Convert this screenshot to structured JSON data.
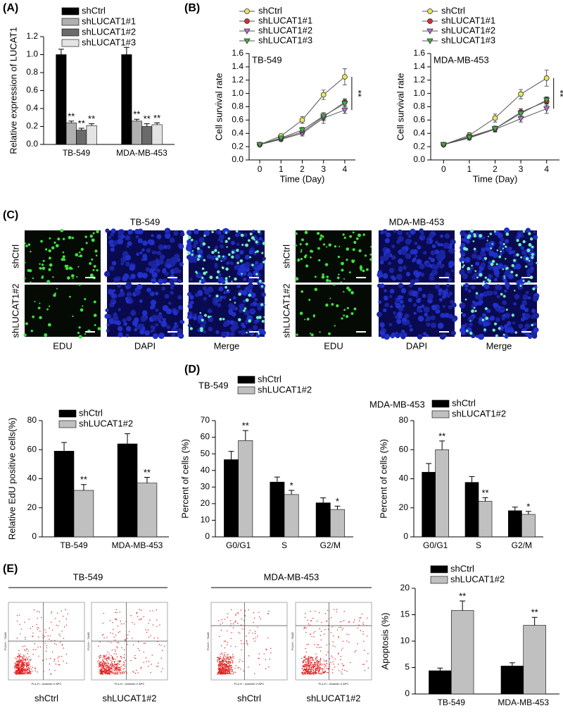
{
  "panels": [
    "(A)",
    "(B)",
    "(C)",
    "(D)",
    "(E)"
  ],
  "microscopy": {
    "groups": [
      "TB-549",
      "MDA-MB-453"
    ],
    "rows": [
      "shCtrl",
      "shLUCAT1#2"
    ],
    "columns": [
      "EDU",
      "DAPI",
      "Merge"
    ]
  },
  "flow": {
    "groups": [
      "TB-549",
      "MDA-MB-453"
    ],
    "samples": [
      "shCtrl",
      "shLUCAT1#2"
    ],
    "x_axis": "FL4-H :: Annexin V APC",
    "y_axis": "FL3-H :: 7AAD"
  },
  "chart_data": [
    {
      "type": "bar",
      "ylabel": "Relative expression of LUCAT1",
      "categories": [
        "TB-549",
        "MDA-MB-453"
      ],
      "ylim": [
        0,
        1.2
      ],
      "yticks": [
        {
          "value": 0,
          "label": "0.0"
        },
        0.2,
        0.4,
        0.6,
        0.8,
        {
          "value": 1,
          "label": "1.0"
        },
        1.2
      ],
      "series": [
        {
          "name": "shCtrl",
          "color": "#000000",
          "values": [
            1.0,
            1.0
          ],
          "errors": [
            0.06,
            0.08
          ]
        },
        {
          "name": "shLUCAT1#1",
          "color": "#b0b0b0",
          "values": [
            0.24,
            0.26
          ],
          "errors": [
            0.02,
            0.02
          ],
          "sig": [
            "**",
            "**"
          ]
        },
        {
          "name": "shLUCAT1#2",
          "color": "#6a6a6a",
          "values": [
            0.16,
            0.2
          ],
          "errors": [
            0.02,
            0.03
          ],
          "sig": [
            "**",
            "**"
          ]
        },
        {
          "name": "shLUCAT1#3",
          "color": "#e4e4e4",
          "values": [
            0.21,
            0.22
          ],
          "errors": [
            0.02,
            0.02
          ],
          "sig": [
            "**",
            "**"
          ]
        }
      ]
    },
    {
      "type": "line",
      "title": "TB-549",
      "xlabel": "Time (Day)",
      "ylabel": "Cell survival rate",
      "annotation": "**",
      "x": [
        0,
        1,
        2,
        3,
        4
      ],
      "xlim": [
        -0.5,
        4.5
      ],
      "xticks": [
        0,
        1,
        2,
        3,
        4
      ],
      "ylim": [
        0,
        1.6
      ],
      "yticks": [
        {
          "value": 0,
          "label": "0.0"
        },
        0.2,
        0.4,
        0.6,
        0.8,
        {
          "value": 1,
          "label": "1.0"
        },
        1.2,
        1.4,
        1.6
      ],
      "series": [
        {
          "name": "shCtrl",
          "color": "#e6e65a",
          "marker": "circle",
          "values": [
            0.23,
            0.36,
            0.6,
            0.98,
            1.25
          ],
          "errors": [
            0.02,
            0.03,
            0.05,
            0.07,
            0.12
          ]
        },
        {
          "name": "shLUCAT1#1",
          "color": "#d03030",
          "marker": "circle",
          "values": [
            0.23,
            0.32,
            0.42,
            0.65,
            0.87
          ],
          "errors": [
            0.02,
            0.03,
            0.04,
            0.06,
            0.05
          ]
        },
        {
          "name": "shLUCAT1#2",
          "color": "#b070d0",
          "marker": "triangle-down",
          "values": [
            0.23,
            0.31,
            0.4,
            0.63,
            0.75
          ],
          "errors": [
            0.02,
            0.03,
            0.04,
            0.08,
            0.05
          ]
        },
        {
          "name": "shLUCAT1#3",
          "color": "#40b040",
          "marker": "triangle-down",
          "values": [
            0.23,
            0.33,
            0.45,
            0.66,
            0.85
          ],
          "errors": [
            0.02,
            0.03,
            0.04,
            0.05,
            0.05
          ]
        }
      ]
    },
    {
      "type": "line",
      "title": "MDA-MB-453",
      "xlabel": "Time (Day)",
      "ylabel": "Cell survival rate",
      "annotation": "**",
      "x": [
        0,
        1,
        2,
        3,
        4
      ],
      "xlim": [
        -0.5,
        4.5
      ],
      "xticks": [
        0,
        1,
        2,
        3,
        4
      ],
      "ylim": [
        0,
        1.6
      ],
      "yticks": [
        {
          "value": 0,
          "label": "0.0"
        },
        0.2,
        0.4,
        0.6,
        0.8,
        {
          "value": 1,
          "label": "1.0"
        },
        1.2,
        1.4,
        1.6
      ],
      "series": [
        {
          "name": "shCtrl",
          "color": "#e6e65a",
          "marker": "circle",
          "values": [
            0.23,
            0.37,
            0.63,
            0.99,
            1.23
          ],
          "errors": [
            0.02,
            0.04,
            0.06,
            0.07,
            0.12
          ]
        },
        {
          "name": "shLUCAT1#1",
          "color": "#d03030",
          "marker": "circle",
          "values": [
            0.23,
            0.35,
            0.47,
            0.72,
            0.88
          ],
          "errors": [
            0.02,
            0.03,
            0.04,
            0.05,
            0.06
          ]
        },
        {
          "name": "shLUCAT1#2",
          "color": "#b070d0",
          "marker": "triangle-down",
          "values": [
            0.23,
            0.33,
            0.46,
            0.62,
            0.77
          ],
          "errors": [
            0.02,
            0.03,
            0.04,
            0.05,
            0.07
          ]
        },
        {
          "name": "shLUCAT1#3",
          "color": "#40b040",
          "marker": "triangle-down",
          "values": [
            0.23,
            0.34,
            0.47,
            0.7,
            0.9
          ],
          "errors": [
            0.02,
            0.03,
            0.04,
            0.05,
            0.05
          ]
        }
      ]
    },
    {
      "type": "bar",
      "ylabel": "Relative EdU positive cells(%)",
      "categories": [
        "TB-549",
        "MDA-MB-453"
      ],
      "ylim": [
        0,
        80
      ],
      "yticks": [
        0,
        20,
        40,
        60,
        80
      ],
      "series": [
        {
          "name": "shCtrl",
          "color": "#000000",
          "values": [
            59,
            64
          ],
          "errors": [
            6,
            7
          ]
        },
        {
          "name": "shLUCAT1#2",
          "color": "#c0c0c0",
          "values": [
            32,
            37
          ],
          "errors": [
            4,
            4
          ],
          "sig": [
            "**",
            "**"
          ]
        }
      ]
    },
    {
      "type": "bar",
      "title": "TB-549",
      "ylabel": "Percent of cells (%)",
      "categories": [
        "G0/G1",
        "S",
        "G2/M"
      ],
      "ylim": [
        0,
        70
      ],
      "yticks": [
        0,
        10,
        20,
        30,
        40,
        50,
        60,
        70
      ],
      "series": [
        {
          "name": "shCtrl",
          "color": "#000000",
          "values": [
            46.5,
            33,
            20.5
          ],
          "errors": [
            5,
            3,
            3
          ]
        },
        {
          "name": "shLUCAT1#2",
          "color": "#c0c0c0",
          "values": [
            58,
            25.5,
            16.5
          ],
          "errors": [
            6,
            2.5,
            2
          ],
          "sig": [
            "**",
            "*",
            "*"
          ]
        }
      ]
    },
    {
      "type": "bar",
      "title": "MDA-MB-453",
      "ylabel": "Percent of cells (%)",
      "categories": [
        "G0/G1",
        "S",
        "G2/M"
      ],
      "ylim": [
        0,
        80
      ],
      "yticks": [
        0,
        20,
        40,
        60,
        80
      ],
      "series": [
        {
          "name": "shCtrl",
          "color": "#000000",
          "values": [
            44.5,
            37.5,
            18
          ],
          "errors": [
            6,
            4,
            2.5
          ]
        },
        {
          "name": "shLUCAT1#2",
          "color": "#c0c0c0",
          "values": [
            60,
            24.5,
            15.5
          ],
          "errors": [
            6,
            2.5,
            2
          ],
          "sig": [
            "**",
            "**",
            "*"
          ]
        }
      ]
    },
    {
      "type": "bar",
      "ylabel": "Apoptosis (%)",
      "categories": [
        "TB-549",
        "MDA-MB-453"
      ],
      "ylim": [
        0,
        20
      ],
      "yticks": [
        0,
        5,
        10,
        15,
        20
      ],
      "series": [
        {
          "name": "shCtrl",
          "color": "#000000",
          "values": [
            4.4,
            5.3
          ],
          "errors": [
            0.5,
            0.6
          ]
        },
        {
          "name": "shLUCAT1#2",
          "color": "#c0c0c0",
          "values": [
            15.8,
            13
          ],
          "errors": [
            1.8,
            1.5
          ],
          "sig": [
            "**",
            "**"
          ]
        }
      ]
    }
  ]
}
